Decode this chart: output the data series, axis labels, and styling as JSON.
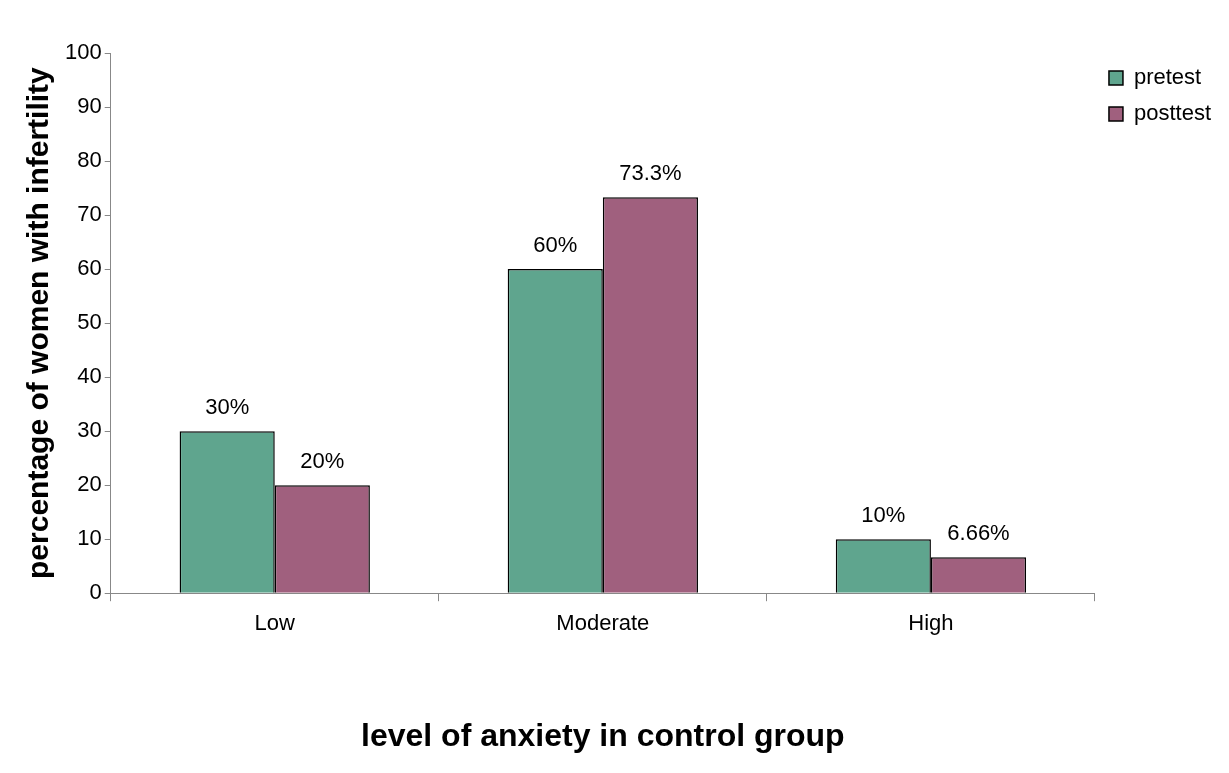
{
  "chart_data": {
    "type": "bar",
    "xlabel": "level of anxiety in control group",
    "ylabel": "percentage of women with infertility",
    "categories": [
      "Low",
      "Moderate",
      "High"
    ],
    "series": [
      {
        "name": "pretest",
        "color": "#5fa58e",
        "values": [
          30,
          60,
          10
        ],
        "value_labels": [
          "30%",
          "60%",
          "10%"
        ]
      },
      {
        "name": "posttest",
        "color": "#a0607e",
        "values": [
          20,
          73.3,
          6.66
        ],
        "value_labels": [
          "20%",
          "73.3%",
          "6.66%"
        ]
      }
    ],
    "ylim": [
      0,
      100
    ],
    "yticks": [
      0,
      10,
      20,
      30,
      40,
      50,
      60,
      70,
      80,
      90,
      100
    ],
    "grid": false,
    "legend": "top right"
  }
}
